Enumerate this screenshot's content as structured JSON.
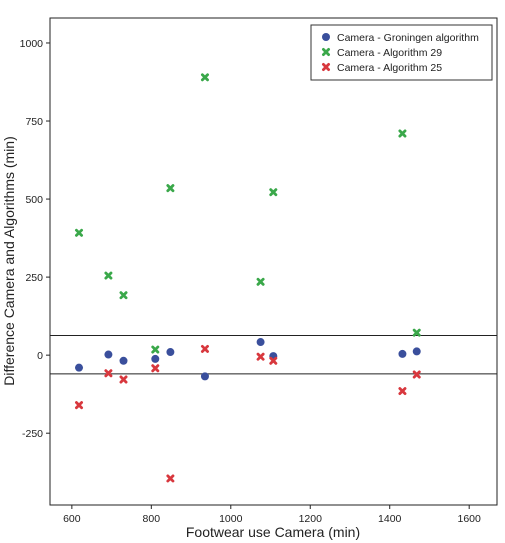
{
  "chart_data": {
    "type": "scatter",
    "title": "",
    "xlabel": "Footwear use Camera (min)",
    "ylabel": "Difference Camera and Algorithms (min)",
    "xlim": [
      545,
      1670
    ],
    "ylim": [
      -480,
      1080
    ],
    "xticks": [
      600,
      800,
      1000,
      1200,
      1400,
      1600
    ],
    "yticks": [
      1000,
      750,
      500,
      250,
      0,
      -250
    ],
    "ytick_labels": [
      "1000",
      "750",
      "500",
      "250",
      "0",
      "-250"
    ],
    "grid": false,
    "legend_position": "top-right",
    "reference_lines": [
      63,
      -60
    ],
    "series": [
      {
        "name": "Camera - Groningen algorithm",
        "marker": "circle",
        "color": "#3a4f9c",
        "points": [
          [
            618,
            -40
          ],
          [
            692,
            2
          ],
          [
            730,
            -18
          ],
          [
            810,
            -12
          ],
          [
            848,
            10
          ],
          [
            935,
            -68
          ],
          [
            1075,
            42
          ],
          [
            1107,
            -3
          ],
          [
            1432,
            4
          ],
          [
            1468,
            12
          ]
        ]
      },
      {
        "name": "Camera - Algorithm 29",
        "marker": "x",
        "color": "#3aa84a",
        "points": [
          [
            618,
            392
          ],
          [
            692,
            255
          ],
          [
            730,
            192
          ],
          [
            810,
            18
          ],
          [
            848,
            535
          ],
          [
            935,
            890
          ],
          [
            1075,
            235
          ],
          [
            1107,
            522
          ],
          [
            1432,
            710
          ],
          [
            1468,
            72
          ]
        ]
      },
      {
        "name": "Camera - Algorithm 25",
        "marker": "x",
        "color": "#d8383e",
        "points": [
          [
            618,
            -160
          ],
          [
            692,
            -58
          ],
          [
            730,
            -78
          ],
          [
            810,
            -42
          ],
          [
            848,
            -395
          ],
          [
            935,
            20
          ],
          [
            1075,
            -5
          ],
          [
            1107,
            -18
          ],
          [
            1432,
            -115
          ],
          [
            1468,
            -62
          ]
        ]
      }
    ]
  }
}
